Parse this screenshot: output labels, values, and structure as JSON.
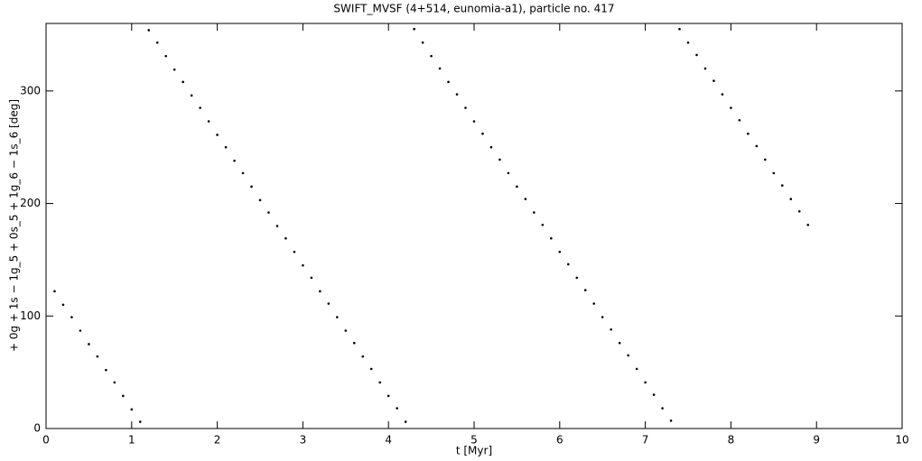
{
  "chart_data": {
    "type": "scatter",
    "title": "SWIFT_MVSF (4+514, eunomia-a1), particle no. 417",
    "x_label": "t [Myr]",
    "y_label": "+ 0g + 1s − 1g_5 + 0s_5 + 1g_6 − 1s_6 [deg]",
    "color": "#000000",
    "xlim": [
      0,
      10
    ],
    "ylim": [
      0,
      360
    ],
    "xticks": [
      0,
      1,
      2,
      3,
      4,
      5,
      6,
      7,
      8,
      9,
      10
    ],
    "yticks": [
      0,
      100,
      200,
      300
    ],
    "x": [
      0.1,
      0.2,
      0.3,
      0.4,
      0.5,
      0.6,
      0.7,
      0.8,
      0.9,
      1.0,
      1.1,
      1.2,
      1.3,
      1.4,
      1.5,
      1.6,
      1.7,
      1.8,
      1.9,
      2.0,
      2.1,
      2.2,
      2.3,
      2.4,
      2.5,
      2.6,
      2.7,
      2.8,
      2.9,
      3.0,
      3.1,
      3.2,
      3.3,
      3.4,
      3.5,
      3.6,
      3.7,
      3.8,
      3.9,
      4.0,
      4.1,
      4.2,
      4.3,
      4.4,
      4.5,
      4.6,
      4.7,
      4.8,
      4.9,
      5.0,
      5.1,
      5.2,
      5.3,
      5.4,
      5.5,
      5.6,
      5.7,
      5.8,
      5.9,
      6.0,
      6.1,
      6.2,
      6.3,
      6.4,
      6.5,
      6.6,
      6.7,
      6.8,
      6.9,
      7.0,
      7.1,
      7.2,
      7.3,
      7.4,
      7.5,
      7.6,
      7.7,
      7.8,
      7.9,
      8.0,
      8.1,
      8.2,
      8.3,
      8.4,
      8.5,
      8.6,
      8.7,
      8.8,
      8.9
    ],
    "values": [
      122,
      110,
      99,
      87,
      75,
      64,
      52,
      41,
      29,
      17,
      6,
      354,
      343,
      331,
      319,
      308,
      296,
      285,
      273,
      261,
      250,
      238,
      227,
      215,
      203,
      192,
      180,
      169,
      157,
      145,
      134,
      122,
      111,
      99,
      87,
      76,
      64,
      53,
      41,
      29,
      18,
      6,
      355,
      343,
      331,
      320,
      308,
      297,
      285,
      273,
      262,
      250,
      239,
      227,
      215,
      204,
      192,
      181,
      169,
      157,
      146,
      134,
      123,
      111,
      99,
      88,
      76,
      65,
      53,
      41,
      30,
      18,
      7,
      355,
      343,
      332,
      320,
      309,
      297,
      285,
      274,
      262,
      251,
      239,
      227,
      216,
      204,
      193,
      181
    ]
  }
}
